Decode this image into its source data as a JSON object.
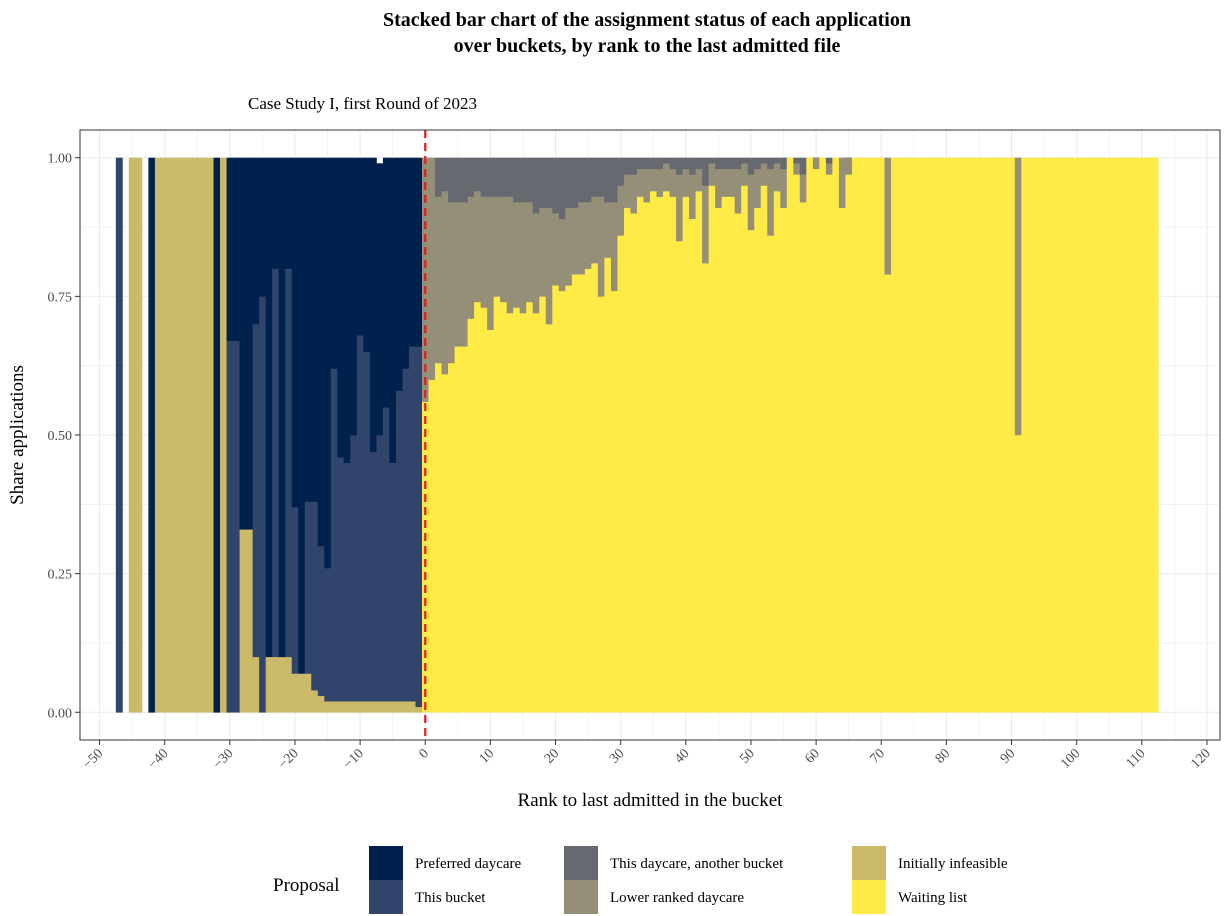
{
  "chart_data": {
    "type": "bar",
    "stacked": true,
    "title_lines": [
      "Stacked bar chart of the assignment status of each application",
      "over buckets,  by rank to the last admitted file"
    ],
    "subtitle": "Case Study I, first Round of 2023",
    "xlabel": "Rank to last admitted in the bucket",
    "ylabel": "Share applications",
    "xlim": [
      -53,
      122
    ],
    "ylim": [
      -0.05,
      1.05
    ],
    "x_ticks": [
      -50,
      -40,
      -30,
      -20,
      -10,
      0,
      10,
      20,
      30,
      40,
      50,
      60,
      70,
      80,
      90,
      100,
      110,
      120
    ],
    "x_tick_labels": [
      "−50",
      "−40",
      "−30",
      "−20",
      "−10",
      "0",
      "10",
      "20",
      "30",
      "40",
      "50",
      "60",
      "70",
      "80",
      "90",
      "100",
      "110",
      "120"
    ],
    "y_ticks": [
      0,
      0.25,
      0.5,
      0.75,
      1.0
    ],
    "y_tick_labels": [
      "0.00",
      "0.25",
      "0.50",
      "0.75",
      "1.00"
    ],
    "grid": true,
    "reference_line": {
      "x": 0,
      "color": "#e41a1c",
      "style": "dashed"
    },
    "legend": {
      "title": "Proposal",
      "position": "bottom",
      "entries": [
        {
          "name": "Preferred daycare",
          "color": "#00204d"
        },
        {
          "name": "This bucket",
          "color": "#31446b"
        },
        {
          "name": "This daycare, another bucket",
          "color": "#666970"
        },
        {
          "name": "Lower ranked daycare",
          "color": "#958f78"
        },
        {
          "name": "Initially infeasible",
          "color": "#cbba69"
        },
        {
          "name": "Waiting list",
          "color": "#ffea46"
        }
      ]
    },
    "series_order": [
      "Waiting list",
      "Initially infeasible",
      "Lower ranked daycare",
      "This daycare, another bucket",
      "This bucket",
      "Preferred daycare"
    ],
    "x_step": 1,
    "negative_ranks": [
      {
        "x": -47,
        "this_bucket": 1.0
      },
      {
        "x": -45,
        "infeasible": 1.0
      },
      {
        "x": -44,
        "infeasible": 1.0
      },
      {
        "x": -42,
        "preferred": 1.0
      },
      {
        "x": -41,
        "infeasible": 1.0
      },
      {
        "x": -40,
        "infeasible": 1.0
      },
      {
        "x": -39,
        "infeasible": 1.0
      },
      {
        "x": -38,
        "infeasible": 1.0
      },
      {
        "x": -37,
        "infeasible": 1.0
      },
      {
        "x": -36,
        "infeasible": 1.0
      },
      {
        "x": -35,
        "infeasible": 1.0
      },
      {
        "x": -34,
        "infeasible": 1.0
      },
      {
        "x": -33,
        "infeasible": 1.0
      },
      {
        "x": -32,
        "preferred": 1.0
      },
      {
        "x": -31,
        "infeasible": 1.0
      },
      {
        "x": -30,
        "this_bucket": 0.67,
        "preferred": 0.33
      },
      {
        "x": -29,
        "this_bucket": 0.67,
        "preferred": 0.33
      },
      {
        "x": -28,
        "infeasible": 0.33,
        "preferred": 0.67
      },
      {
        "x": -27,
        "infeasible": 0.33,
        "preferred": 0.67
      },
      {
        "x": -26,
        "infeasible": 0.1,
        "this_bucket": 0.6,
        "preferred": 0.3
      },
      {
        "x": -25,
        "this_bucket": 0.75,
        "preferred": 0.25
      },
      {
        "x": -24,
        "infeasible": 0.1,
        "preferred": 0.9
      },
      {
        "x": -23,
        "infeasible": 0.1,
        "this_bucket": 0.7,
        "preferred": 0.2
      },
      {
        "x": -22,
        "infeasible": 0.1,
        "preferred": 0.9
      },
      {
        "x": -21,
        "infeasible": 0.1,
        "this_bucket": 0.7,
        "preferred": 0.2
      },
      {
        "x": -20,
        "infeasible": 0.07,
        "this_bucket": 0.3,
        "preferred": 0.63
      },
      {
        "x": -19,
        "infeasible": 0.07,
        "preferred": 0.93
      },
      {
        "x": -18,
        "infeasible": 0.07,
        "this_bucket": 0.31,
        "preferred": 0.62
      },
      {
        "x": -17,
        "infeasible": 0.04,
        "this_bucket": 0.34,
        "preferred": 0.62
      },
      {
        "x": -16,
        "infeasible": 0.03,
        "this_bucket": 0.27,
        "preferred": 0.7
      },
      {
        "x": -15,
        "infeasible": 0.02,
        "this_bucket": 0.24,
        "preferred": 0.74
      },
      {
        "x": -14,
        "infeasible": 0.02,
        "this_bucket": 0.6,
        "preferred": 0.38
      },
      {
        "x": -13,
        "infeasible": 0.02,
        "this_bucket": 0.44,
        "preferred": 0.54
      },
      {
        "x": -12,
        "infeasible": 0.02,
        "this_bucket": 0.43,
        "preferred": 0.55
      },
      {
        "x": -11,
        "infeasible": 0.02,
        "this_bucket": 0.48,
        "preferred": 0.5
      },
      {
        "x": -10,
        "infeasible": 0.02,
        "this_bucket": 0.66,
        "preferred": 0.32
      },
      {
        "x": -9,
        "infeasible": 0.02,
        "this_bucket": 0.63,
        "preferred": 0.35
      },
      {
        "x": -8,
        "infeasible": 0.02,
        "this_bucket": 0.45,
        "preferred": 0.53
      },
      {
        "x": -7,
        "infeasible": 0.02,
        "this_bucket": 0.48,
        "preferred": 0.49
      },
      {
        "x": -6,
        "infeasible": 0.02,
        "this_bucket": 0.53,
        "preferred": 0.45
      },
      {
        "x": -5,
        "infeasible": 0.02,
        "this_bucket": 0.43,
        "preferred": 0.55
      },
      {
        "x": -4,
        "infeasible": 0.02,
        "this_bucket": 0.56,
        "preferred": 0.42
      },
      {
        "x": -3,
        "infeasible": 0.02,
        "this_bucket": 0.6,
        "preferred": 0.38
      },
      {
        "x": -2,
        "infeasible": 0.02,
        "this_bucket": 0.64,
        "preferred": 0.34
      },
      {
        "x": -1,
        "infeasible": 0.01,
        "this_bucket": 0.65,
        "preferred": 0.34
      }
    ],
    "waiting_list_share": [
      0.56,
      0.6,
      0.63,
      0.61,
      0.63,
      0.66,
      0.66,
      0.71,
      0.74,
      0.73,
      0.69,
      0.75,
      0.74,
      0.72,
      0.73,
      0.72,
      0.74,
      0.72,
      0.75,
      0.7,
      0.77,
      0.76,
      0.77,
      0.79,
      0.79,
      0.8,
      0.81,
      0.75,
      0.82,
      0.76,
      0.86,
      0.91,
      0.9,
      0.93,
      0.92,
      0.94,
      0.93,
      0.94,
      0.93,
      0.85,
      0.93,
      0.89,
      0.94,
      0.81,
      0.95,
      0.91,
      0.93,
      0.93,
      0.9,
      0.95,
      0.87,
      0.91,
      0.95,
      0.86,
      0.94,
      0.91,
      1.0,
      0.97,
      0.92,
      1.0,
      0.98,
      1.0,
      0.97,
      1.0,
      0.91,
      0.97,
      1.0,
      1.0,
      1.0,
      1.0,
      1.0,
      0.79,
      1.0,
      1.0,
      1.0,
      1.0,
      1.0,
      1.0,
      1.0,
      1.0,
      1.0,
      1.0,
      1.0,
      1.0,
      1.0,
      1.0,
      1.0,
      1.0,
      1.0,
      1.0,
      1.0,
      0.5,
      1.0,
      1.0,
      1.0,
      1.0,
      1.0,
      1.0,
      1.0,
      1.0,
      1.0,
      1.0,
      1.0,
      1.0,
      1.0,
      1.0,
      1.0,
      1.0,
      1.0,
      1.0,
      1.0,
      1.0,
      1.0
    ],
    "lower_ranked_share": [
      0.44,
      0.4,
      0.3,
      0.33,
      0.29,
      0.26,
      0.26,
      0.22,
      0.2,
      0.2,
      0.24,
      0.18,
      0.19,
      0.21,
      0.19,
      0.2,
      0.18,
      0.18,
      0.16,
      0.21,
      0.13,
      0.13,
      0.14,
      0.12,
      0.13,
      0.12,
      0.12,
      0.18,
      0.1,
      0.16,
      0.09,
      0.06,
      0.07,
      0.05,
      0.06,
      0.04,
      0.05,
      0.05,
      0.05,
      0.12,
      0.05,
      0.08,
      0.04,
      0.14,
      0.04,
      0.07,
      0.05,
      0.05,
      0.08,
      0.04,
      0.1,
      0.07,
      0.04,
      0.12,
      0.05,
      0.07,
      0.0,
      0.02,
      0.05,
      0.0,
      0.02,
      0.0,
      0.02,
      0.0,
      0.09,
      0.03,
      0.0,
      0.0,
      0.0,
      0.0,
      0.0,
      0.21,
      0.0,
      0.0,
      0.0,
      0.0,
      0.0,
      0.0,
      0.0,
      0.0,
      0.0,
      0.0,
      0.0,
      0.0,
      0.0,
      0.0,
      0.0,
      0.0,
      0.0,
      0.0,
      0.0,
      0.5,
      0.0,
      0.0,
      0.0,
      0.0,
      0.0,
      0.0,
      0.0,
      0.0,
      0.0,
      0.0,
      0.0,
      0.0,
      0.0,
      0.0,
      0.0,
      0.0,
      0.0,
      0.0,
      0.0,
      0.0,
      0.0
    ]
  }
}
